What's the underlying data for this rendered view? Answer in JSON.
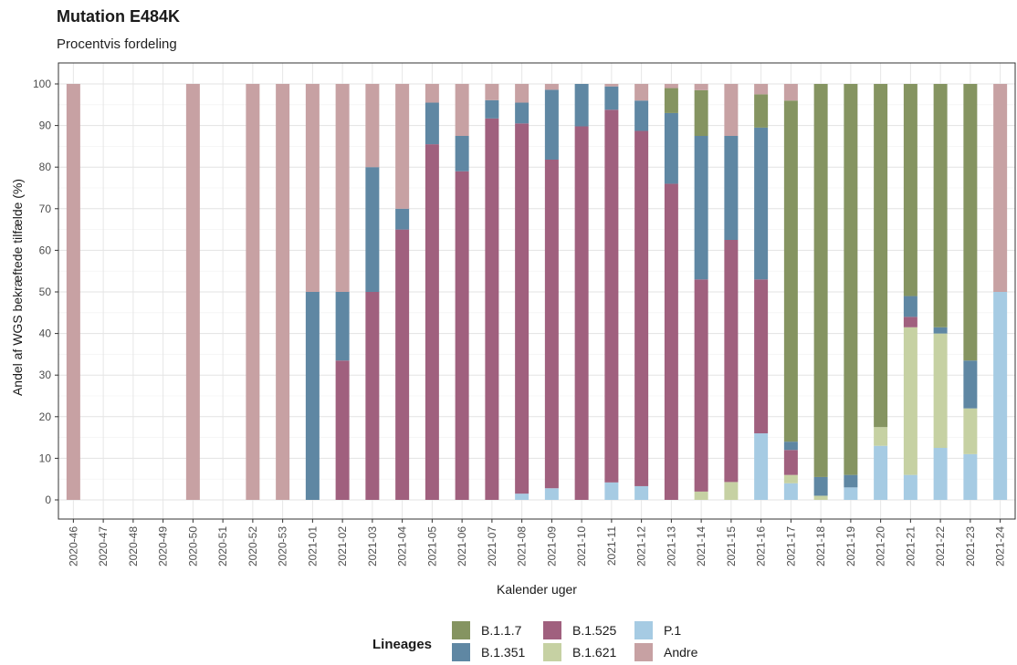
{
  "chart_data": {
    "type": "bar",
    "stacked": true,
    "title": "Mutation E484K",
    "subtitle": "Procentvis fordeling",
    "xlabel": "Kalender uger",
    "ylabel": "Andel af WGS bekræftede tilfælde (%)",
    "ylim": [
      0,
      100
    ],
    "yticks": [
      0,
      10,
      20,
      30,
      40,
      50,
      60,
      70,
      80,
      90,
      100
    ],
    "grid": true,
    "legend": {
      "title": "Lineages",
      "position": "bottom"
    },
    "categories": [
      "2020-46",
      "2020-47",
      "2020-48",
      "2020-49",
      "2020-50",
      "2020-51",
      "2020-52",
      "2020-53",
      "2021-01",
      "2021-02",
      "2021-03",
      "2021-04",
      "2021-05",
      "2021-06",
      "2021-07",
      "2021-08",
      "2021-09",
      "2021-10",
      "2021-11",
      "2021-12",
      "2021-13",
      "2021-14",
      "2021-15",
      "2021-16",
      "2021-17",
      "2021-18",
      "2021-19",
      "2021-20",
      "2021-21",
      "2021-22",
      "2021-23",
      "2021-24"
    ],
    "series": [
      {
        "name": "P.1",
        "color": "#a6cbe3",
        "values": [
          0,
          0,
          0,
          0,
          0,
          0,
          0,
          0,
          0,
          0,
          0,
          0,
          0,
          0,
          0,
          1.5,
          2.8,
          0,
          4.2,
          3.3,
          0,
          0,
          0,
          16,
          4,
          0,
          3,
          13,
          6,
          12.5,
          11,
          50
        ]
      },
      {
        "name": "B.1.621",
        "color": "#c6d1a3",
        "values": [
          0,
          0,
          0,
          0,
          0,
          0,
          0,
          0,
          0,
          0,
          0,
          0,
          0,
          0,
          0,
          0,
          0,
          0,
          0,
          0,
          0,
          2,
          4.3,
          0,
          2,
          1,
          0,
          4.5,
          35.5,
          27.5,
          11,
          0
        ]
      },
      {
        "name": "B.1.525",
        "color": "#a0607e",
        "values": [
          0,
          0,
          0,
          0,
          0,
          0,
          0,
          0,
          0,
          33.5,
          50,
          65,
          85.5,
          79,
          91.7,
          89,
          79,
          89.8,
          89.6,
          85.4,
          76,
          51,
          58.2,
          37,
          6,
          0,
          0,
          0,
          2.5,
          0,
          0,
          0
        ]
      },
      {
        "name": "B.1.351",
        "color": "#5f87a3",
        "values": [
          0,
          0,
          0,
          0,
          0,
          0,
          0,
          0,
          50,
          16.5,
          30,
          5,
          10,
          8.5,
          4.4,
          5,
          16.8,
          10.2,
          5.6,
          7.3,
          17,
          34.5,
          25,
          36.5,
          2,
          4.5,
          3,
          0,
          5,
          1.5,
          11.5,
          0
        ]
      },
      {
        "name": "B.1.1.7",
        "color": "#859461",
        "values": [
          0,
          0,
          0,
          0,
          0,
          0,
          0,
          0,
          0,
          0,
          0,
          0,
          0,
          0,
          0,
          0,
          0,
          0,
          0,
          0,
          6,
          11,
          0,
          8,
          82,
          94.5,
          94,
          82.5,
          51,
          58.5,
          66.5,
          0
        ]
      },
      {
        "name": "Andre",
        "color": "#c7a1a3",
        "values": [
          100,
          0,
          0,
          0,
          100,
          0,
          100,
          100,
          50,
          50,
          20,
          30,
          4.5,
          12.5,
          3.9,
          4.5,
          1.4,
          0,
          0.6,
          4,
          1,
          1.5,
          12.5,
          2.5,
          4,
          0,
          0,
          0,
          0,
          0,
          0,
          50
        ]
      }
    ],
    "legend_order": [
      "B.1.1.7",
      "B.1.351",
      "B.1.525",
      "B.1.621",
      "P.1",
      "Andre"
    ]
  }
}
